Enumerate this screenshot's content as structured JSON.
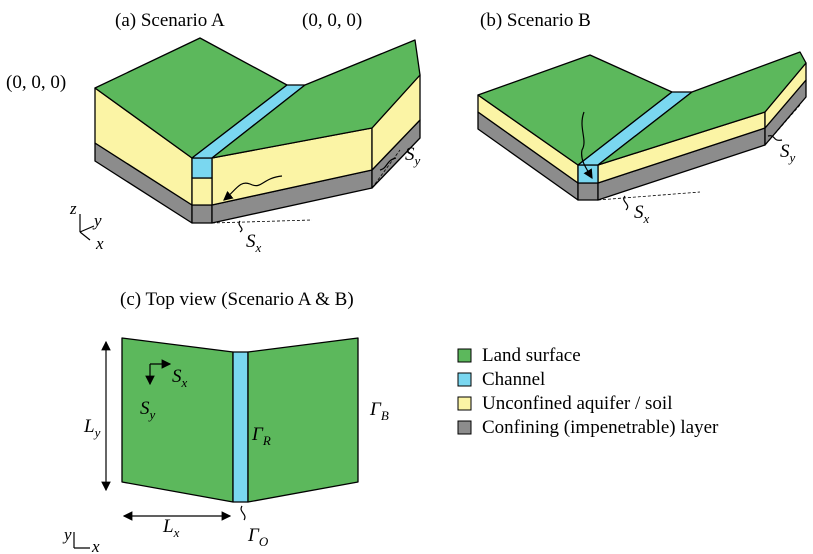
{
  "panel_a": {
    "title": "(a) Scenario A",
    "origin_left": "(0, 0, 0)",
    "origin_right": "(0, 0, 0)",
    "slope_y": {
      "base": "S",
      "sub": "y"
    },
    "slope_x": {
      "base": "S",
      "sub": "x"
    },
    "axes": [
      "z",
      "y",
      "x"
    ]
  },
  "panel_b": {
    "title": "(b) Scenario B",
    "slope_y": {
      "base": "S",
      "sub": "y"
    },
    "slope_x": {
      "base": "S",
      "sub": "x"
    }
  },
  "panel_c": {
    "title": "(c) Top view (Scenario A & B)",
    "length_y": {
      "base": "L",
      "sub": "y"
    },
    "slope_x": {
      "base": "S",
      "sub": "x"
    },
    "slope_y": {
      "base": "S",
      "sub": "y"
    },
    "gamma_r": {
      "base": "Γ",
      "sub": "R"
    },
    "gamma_b": {
      "base": "Γ",
      "sub": "B"
    },
    "length_x": {
      "base": "L",
      "sub": "x"
    },
    "gamma_o": {
      "base": "Γ",
      "sub": "O"
    },
    "axes": [
      "y",
      "x"
    ]
  },
  "legend": [
    {
      "label": "Land surface",
      "color": "#5cb85c"
    },
    {
      "label": "Channel",
      "color": "#7ad7f0"
    },
    {
      "label": "Unconfined aquifer / soil",
      "color": "#fbf4a5"
    },
    {
      "label": "Confining (impenetrable) layer",
      "color": "#8c8c8c"
    }
  ]
}
